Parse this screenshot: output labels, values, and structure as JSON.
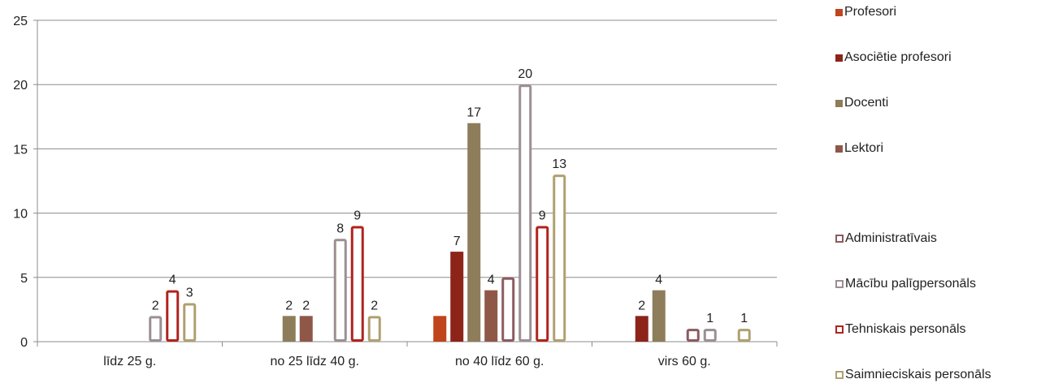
{
  "chart_data": {
    "type": "bar",
    "ylim": [
      0,
      25
    ],
    "yticks": [
      0,
      5,
      10,
      15,
      20,
      25
    ],
    "grid": true,
    "legend_position": "right",
    "categories": [
      "līdz 25 g.",
      "no 25 līdz 40 g.",
      "no 40 līdz 60 g.",
      "virs 60 g."
    ],
    "series": [
      {
        "name": "Profesori",
        "style": "solid",
        "color": "#c0441c",
        "values": [
          0,
          0,
          2,
          0
        ]
      },
      {
        "name": "Asociētie profesori",
        "style": "solid",
        "color": "#8c2419",
        "values": [
          0,
          0,
          7,
          2
        ]
      },
      {
        "name": "Docenti",
        "style": "solid",
        "color": "#8e7d5a",
        "values": [
          0,
          2,
          17,
          4
        ]
      },
      {
        "name": "Lektori",
        "style": "solid",
        "color": "#8f5748",
        "values": [
          0,
          2,
          4,
          0
        ]
      },
      {
        "name": "Administratīvais",
        "style": "outline",
        "color": "#8b5a5f",
        "values": [
          0,
          0,
          5,
          1
        ]
      },
      {
        "name": "Mācību palīgpersonāls",
        "style": "outline",
        "color": "#9b8f94",
        "values": [
          2,
          8,
          20,
          1
        ]
      },
      {
        "name": "Tehniskais personāls",
        "style": "outline",
        "color": "#b0231d",
        "values": [
          4,
          9,
          9,
          0
        ]
      },
      {
        "name": "Saimnieciskais personāls",
        "style": "outline",
        "color": "#b0a070",
        "values": [
          3,
          2,
          13,
          1
        ]
      }
    ],
    "data_labels": [
      {
        "series": 5,
        "category": 0,
        "text": "2"
      },
      {
        "series": 6,
        "category": 0,
        "text": "4"
      },
      {
        "series": 7,
        "category": 0,
        "text": "3"
      },
      {
        "series": 2,
        "category": 1,
        "text": "2"
      },
      {
        "series": 3,
        "category": 1,
        "text": "2"
      },
      {
        "series": 5,
        "category": 1,
        "text": "8"
      },
      {
        "series": 6,
        "category": 1,
        "text": "9"
      },
      {
        "series": 7,
        "category": 1,
        "text": "2"
      },
      {
        "series": 1,
        "category": 2,
        "text": "7"
      },
      {
        "series": 2,
        "category": 2,
        "text": "17"
      },
      {
        "series": 3,
        "category": 2,
        "text": "4"
      },
      {
        "series": 5,
        "category": 2,
        "text": "20"
      },
      {
        "series": 6,
        "category": 2,
        "text": "9"
      },
      {
        "series": 7,
        "category": 2,
        "text": "13"
      },
      {
        "series": 1,
        "category": 3,
        "text": "2"
      },
      {
        "series": 2,
        "category": 3,
        "text": "4"
      },
      {
        "series": 5,
        "category": 3,
        "text": "1"
      },
      {
        "series": 7,
        "category": 3,
        "text": "1"
      }
    ]
  }
}
